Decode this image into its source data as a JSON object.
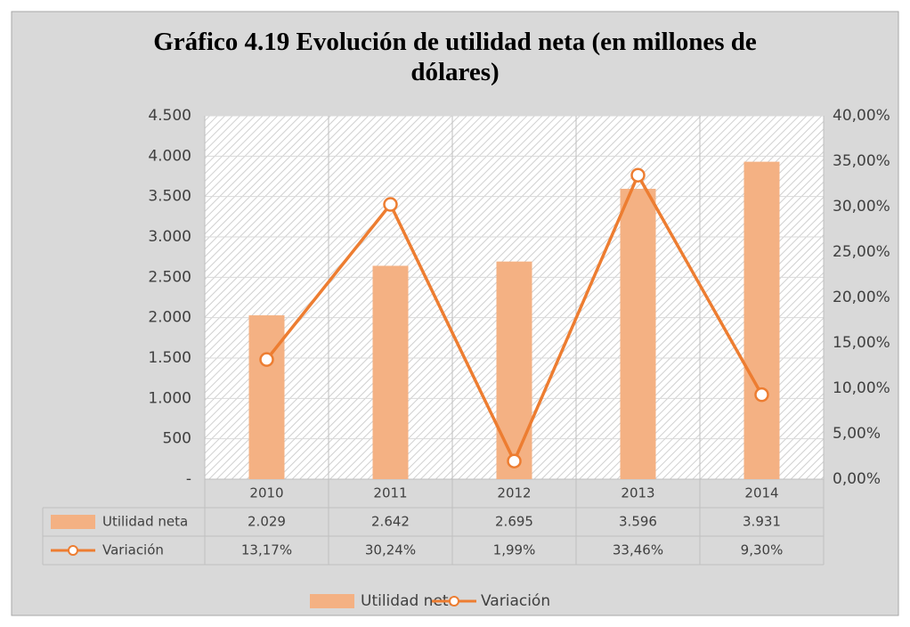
{
  "chart_data": {
    "type": "bar-line",
    "title": "Gráfico 4.19 Evolución de utilidad neta (en millones de dólares)",
    "categories": [
      "2010",
      "2011",
      "2012",
      "2013",
      "2014"
    ],
    "series": [
      {
        "name": "Utilidad neta",
        "type": "bar",
        "color": "#f4b183",
        "values": [
          2029,
          2642,
          2695,
          3596,
          3931
        ],
        "value_labels": [
          "2.029",
          "2.642",
          "2.695",
          "3.596",
          "3.931"
        ]
      },
      {
        "name": "Variación",
        "type": "line",
        "axis": "y2",
        "color": "#ed7d31",
        "values": [
          13.17,
          30.24,
          1.99,
          33.46,
          9.3
        ],
        "value_labels": [
          "13,17%",
          "30,24%",
          "1,99%",
          "33,46%",
          "9,30%"
        ]
      }
    ],
    "ylim": [
      0,
      4500
    ],
    "yticks": [
      {
        "value": 0,
        "label": "-"
      },
      500,
      {
        "value": 1000,
        "label": "1.000"
      },
      {
        "value": 1500,
        "label": "1.500"
      },
      {
        "value": 2000,
        "label": "2.000"
      },
      {
        "value": 2500,
        "label": "2.500"
      },
      {
        "value": 3000,
        "label": "3.000"
      },
      {
        "value": 3500,
        "label": "3.500"
      },
      {
        "value": 4000,
        "label": "4.000"
      },
      {
        "value": 4500,
        "label": "4.500"
      }
    ],
    "y2lim": [
      0,
      40
    ],
    "y2ticks": [
      {
        "value": 0,
        "label": "0,00%"
      },
      {
        "value": 5,
        "label": "5,00%"
      },
      {
        "value": 10,
        "label": "10,00%"
      },
      {
        "value": 15,
        "label": "15,00%"
      },
      {
        "value": 20,
        "label": "20,00%"
      },
      {
        "value": 25,
        "label": "25,00%"
      },
      {
        "value": 30,
        "label": "30,00%"
      },
      {
        "value": 35,
        "label": "35,00%"
      },
      {
        "value": 40,
        "label": "40,00%"
      }
    ],
    "grid": true,
    "legend": "bottom",
    "data_table": true
  }
}
